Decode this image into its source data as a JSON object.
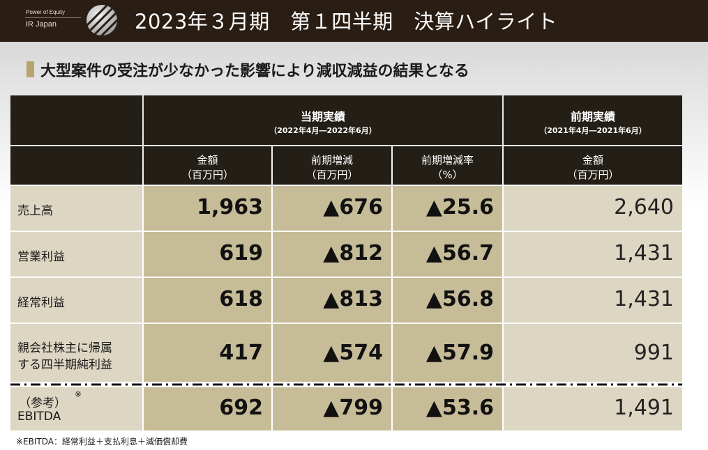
{
  "header": {
    "logo_tagline": "Power of Equity",
    "logo_name": "IR Japan",
    "title": "2023年３月期　第１四半期　決算ハイライト"
  },
  "subheading": "大型案件の受注が少なかった影響により減収減益の結果となる",
  "table": {
    "current": {
      "title": "当期実績",
      "period": "（2022年4月―2022年6月）",
      "columns": [
        {
          "line1": "金額",
          "line2": "（百万円）"
        },
        {
          "line1": "前期増減",
          "line2": "（百万円）"
        },
        {
          "line1": "前期増減率",
          "line2": "（%）"
        }
      ]
    },
    "previous": {
      "title": "前期実績",
      "period": "（2021年4月―2021年6月）",
      "columns": [
        {
          "line1": "金額",
          "line2": "（百万円）"
        }
      ]
    },
    "rows": [
      {
        "label1": "売上高",
        "label2": "",
        "amount": "1,963",
        "change": "▲676",
        "rate": "▲25.6",
        "prev": "2,640"
      },
      {
        "label1": "営業利益",
        "label2": "",
        "amount": "619",
        "change": "▲812",
        "rate": "▲56.7",
        "prev": "1,431"
      },
      {
        "label1": "経常利益",
        "label2": "",
        "amount": "618",
        "change": "▲813",
        "rate": "▲56.8",
        "prev": "1,431"
      },
      {
        "label1": "親会社株主に帰属",
        "label2": "する四半期純利益",
        "amount": "417",
        "change": "▲574",
        "rate": "▲57.9",
        "prev": "991"
      },
      {
        "label1": "（参考）",
        "label2": "EBITDA",
        "note_mark": "※",
        "amount": "692",
        "change": "▲799",
        "rate": "▲53.6",
        "prev": "1,491"
      }
    ]
  },
  "footnote": "※EBITDA：経常利益＋支払利息＋減価償却費",
  "colors": {
    "header_bg": "#2a1d14",
    "table_header_bg": "#231e16",
    "accent_gold": "#b8a272",
    "cell_beige": "#ddd6c2",
    "cell_khaki": "#c6bc98"
  }
}
